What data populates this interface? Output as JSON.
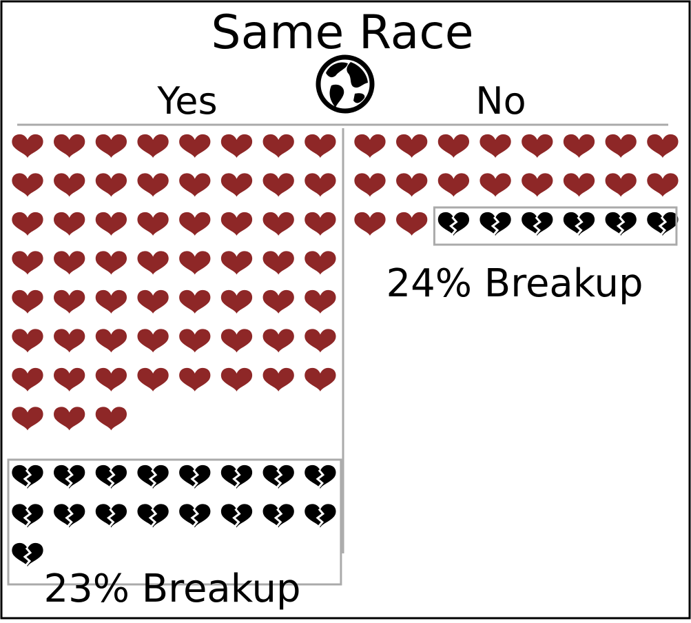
{
  "title": "Same Race",
  "globe_icon": "globe-icon",
  "colors": {
    "intact": "#8e2727",
    "broken": "#000000",
    "frame": "#aaaaaa",
    "border": "#000000"
  },
  "chart_data": {
    "type": "pictogram",
    "title": "Same Race",
    "unit_icon_intact": "heart-icon",
    "unit_icon_broken": "broken-heart-icon",
    "groups": [
      {
        "label": "Yes",
        "intact": 59,
        "broken": 17,
        "breakup_label": "23% Breakup",
        "breakup_percent": 23
      },
      {
        "label": "No",
        "intact": 18,
        "broken": 6,
        "breakup_label": "24% Breakup",
        "breakup_percent": 24
      }
    ]
  }
}
